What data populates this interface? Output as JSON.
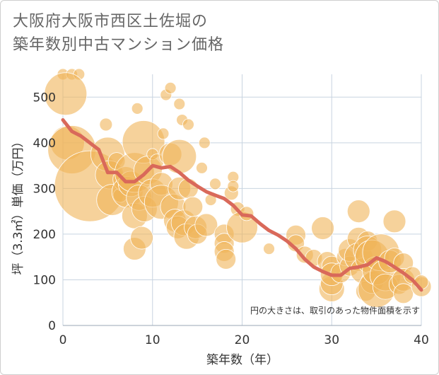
{
  "chart_data": {
    "type": "scatter",
    "title_lines": [
      "大阪府大阪市西区土佐堀の",
      "築年数別中古マンション価格"
    ],
    "xlabel": "築年数（年）",
    "ylabel": "坪（3.3㎡）単価（万円）",
    "note": "円の大きさは、取引のあった物件面積を示す",
    "xlim": [
      0,
      40
    ],
    "ylim": [
      0,
      550
    ],
    "x_ticks": [
      0,
      10,
      20,
      30,
      40
    ],
    "y_ticks": [
      0,
      100,
      200,
      300,
      400,
      500
    ],
    "grid": true,
    "colors": {
      "bubble": "#f0b458",
      "trend": "#d9695a",
      "grid": "#c8d4e0"
    },
    "series": [
      {
        "type": "bubble",
        "points": [
          {
            "x": 0,
            "y": 550,
            "s": 8
          },
          {
            "x": 1,
            "y": 550,
            "s": 8
          },
          {
            "x": 1.8,
            "y": 550,
            "s": 8
          },
          {
            "x": 0.3,
            "y": 507,
            "s": 30
          },
          {
            "x": 0.5,
            "y": 400,
            "s": 24
          },
          {
            "x": 1,
            "y": 385,
            "s": 34
          },
          {
            "x": 3,
            "y": 305,
            "s": 50
          },
          {
            "x": 4.8,
            "y": 440,
            "s": 9
          },
          {
            "x": 5,
            "y": 375,
            "s": 24
          },
          {
            "x": 5.2,
            "y": 330,
            "s": 20
          },
          {
            "x": 5.5,
            "y": 275,
            "s": 22
          },
          {
            "x": 6,
            "y": 360,
            "s": 12
          },
          {
            "x": 6.4,
            "y": 285,
            "s": 10
          },
          {
            "x": 7,
            "y": 320,
            "s": 18
          },
          {
            "x": 7.2,
            "y": 292,
            "s": 22
          },
          {
            "x": 7.6,
            "y": 310,
            "s": 18
          },
          {
            "x": 8,
            "y": 335,
            "s": 28
          },
          {
            "x": 8,
            "y": 240,
            "s": 18
          },
          {
            "x": 8,
            "y": 168,
            "s": 16
          },
          {
            "x": 8.3,
            "y": 475,
            "s": 8
          },
          {
            "x": 8.5,
            "y": 280,
            "s": 18
          },
          {
            "x": 8.8,
            "y": 192,
            "s": 16
          },
          {
            "x": 9,
            "y": 402,
            "s": 30
          },
          {
            "x": 9.1,
            "y": 255,
            "s": 18
          },
          {
            "x": 9.5,
            "y": 340,
            "s": 20
          },
          {
            "x": 10,
            "y": 375,
            "s": 8
          },
          {
            "x": 10,
            "y": 290,
            "s": 20
          },
          {
            "x": 10.5,
            "y": 360,
            "s": 10
          },
          {
            "x": 11,
            "y": 310,
            "s": 16
          },
          {
            "x": 11,
            "y": 270,
            "s": 24
          },
          {
            "x": 11.2,
            "y": 420,
            "s": 8
          },
          {
            "x": 11.5,
            "y": 505,
            "s": 8
          },
          {
            "x": 12,
            "y": 520,
            "s": 8
          },
          {
            "x": 12,
            "y": 375,
            "s": 16
          },
          {
            "x": 12.3,
            "y": 260,
            "s": 18
          },
          {
            "x": 12.5,
            "y": 230,
            "s": 16
          },
          {
            "x": 12.8,
            "y": 215,
            "s": 16
          },
          {
            "x": 13,
            "y": 370,
            "s": 24
          },
          {
            "x": 13,
            "y": 300,
            "s": 16
          },
          {
            "x": 13,
            "y": 485,
            "s": 8
          },
          {
            "x": 13.3,
            "y": 450,
            "s": 8
          },
          {
            "x": 13.5,
            "y": 225,
            "s": 18
          },
          {
            "x": 13.8,
            "y": 195,
            "s": 18
          },
          {
            "x": 14,
            "y": 440,
            "s": 8
          },
          {
            "x": 14,
            "y": 300,
            "s": 14
          },
          {
            "x": 14.5,
            "y": 260,
            "s": 14
          },
          {
            "x": 14.8,
            "y": 215,
            "s": 16
          },
          {
            "x": 15,
            "y": 200,
            "s": 14
          },
          {
            "x": 15.5,
            "y": 345,
            "s": 8
          },
          {
            "x": 15.8,
            "y": 400,
            "s": 8
          },
          {
            "x": 16,
            "y": 220,
            "s": 16
          },
          {
            "x": 16.5,
            "y": 275,
            "s": 8
          },
          {
            "x": 17,
            "y": 310,
            "s": 8
          },
          {
            "x": 18,
            "y": 200,
            "s": 14
          },
          {
            "x": 18,
            "y": 180,
            "s": 14
          },
          {
            "x": 18,
            "y": 162,
            "s": 14
          },
          {
            "x": 18.2,
            "y": 145,
            "s": 14
          },
          {
            "x": 18.8,
            "y": 290,
            "s": 10
          },
          {
            "x": 19,
            "y": 325,
            "s": 8
          },
          {
            "x": 19,
            "y": 305,
            "s": 8
          },
          {
            "x": 19.5,
            "y": 255,
            "s": 10
          },
          {
            "x": 20,
            "y": 215,
            "s": 22
          },
          {
            "x": 20.5,
            "y": 245,
            "s": 10
          },
          {
            "x": 23,
            "y": 168,
            "s": 8
          },
          {
            "x": 26,
            "y": 198,
            "s": 14
          },
          {
            "x": 26,
            "y": 180,
            "s": 12
          },
          {
            "x": 27,
            "y": 155,
            "s": 12
          },
          {
            "x": 28,
            "y": 148,
            "s": 12
          },
          {
            "x": 29,
            "y": 213,
            "s": 16
          },
          {
            "x": 29.5,
            "y": 140,
            "s": 14
          },
          {
            "x": 30,
            "y": 130,
            "s": 14
          },
          {
            "x": 30,
            "y": 80,
            "s": 18
          },
          {
            "x": 30,
            "y": 92,
            "s": 16
          },
          {
            "x": 30,
            "y": 112,
            "s": 16
          },
          {
            "x": 31,
            "y": 115,
            "s": 14
          },
          {
            "x": 31.5,
            "y": 150,
            "s": 12
          },
          {
            "x": 32,
            "y": 130,
            "s": 14
          },
          {
            "x": 32,
            "y": 165,
            "s": 16
          },
          {
            "x": 33,
            "y": 250,
            "s": 16
          },
          {
            "x": 33,
            "y": 190,
            "s": 16
          },
          {
            "x": 33,
            "y": 150,
            "s": 20
          },
          {
            "x": 33.5,
            "y": 120,
            "s": 18
          },
          {
            "x": 33.8,
            "y": 75,
            "s": 14
          },
          {
            "x": 34,
            "y": 185,
            "s": 14
          },
          {
            "x": 34,
            "y": 165,
            "s": 20
          },
          {
            "x": 34.5,
            "y": 150,
            "s": 24
          },
          {
            "x": 34.5,
            "y": 95,
            "s": 16
          },
          {
            "x": 35,
            "y": 80,
            "s": 26
          },
          {
            "x": 35,
            "y": 120,
            "s": 20
          },
          {
            "x": 35.5,
            "y": 160,
            "s": 26
          },
          {
            "x": 36,
            "y": 110,
            "s": 22
          },
          {
            "x": 36,
            "y": 85,
            "s": 18
          },
          {
            "x": 36.5,
            "y": 140,
            "s": 16
          },
          {
            "x": 37,
            "y": 228,
            "s": 16
          },
          {
            "x": 37,
            "y": 148,
            "s": 14
          },
          {
            "x": 37.5,
            "y": 90,
            "s": 14
          },
          {
            "x": 38,
            "y": 137,
            "s": 14
          },
          {
            "x": 38,
            "y": 100,
            "s": 16
          },
          {
            "x": 38,
            "y": 70,
            "s": 14
          },
          {
            "x": 39,
            "y": 110,
            "s": 12
          },
          {
            "x": 40,
            "y": 85,
            "s": 14
          },
          {
            "x": 40,
            "y": 95,
            "s": 10
          }
        ]
      },
      {
        "type": "line",
        "points": [
          [
            0,
            450
          ],
          [
            1,
            425
          ],
          [
            2,
            415
          ],
          [
            3,
            400
          ],
          [
            4,
            385
          ],
          [
            5,
            335
          ],
          [
            6,
            335
          ],
          [
            7,
            315
          ],
          [
            8,
            315
          ],
          [
            9,
            330
          ],
          [
            10,
            350
          ],
          [
            11,
            345
          ],
          [
            12,
            348
          ],
          [
            13,
            335
          ],
          [
            14,
            318
          ],
          [
            15,
            305
          ],
          [
            16,
            293
          ],
          [
            17,
            285
          ],
          [
            18,
            278
          ],
          [
            19,
            263
          ],
          [
            20,
            242
          ],
          [
            21,
            240
          ],
          [
            22,
            223
          ],
          [
            23,
            208
          ],
          [
            24,
            198
          ],
          [
            25,
            185
          ],
          [
            26,
            168
          ],
          [
            27,
            145
          ],
          [
            28,
            128
          ],
          [
            29,
            118
          ],
          [
            30,
            110
          ],
          [
            31,
            110
          ],
          [
            32,
            125
          ],
          [
            33,
            128
          ],
          [
            34,
            133
          ],
          [
            35,
            148
          ],
          [
            36,
            140
          ],
          [
            37,
            128
          ],
          [
            38,
            115
          ],
          [
            39,
            100
          ],
          [
            40,
            78
          ]
        ]
      }
    ]
  }
}
